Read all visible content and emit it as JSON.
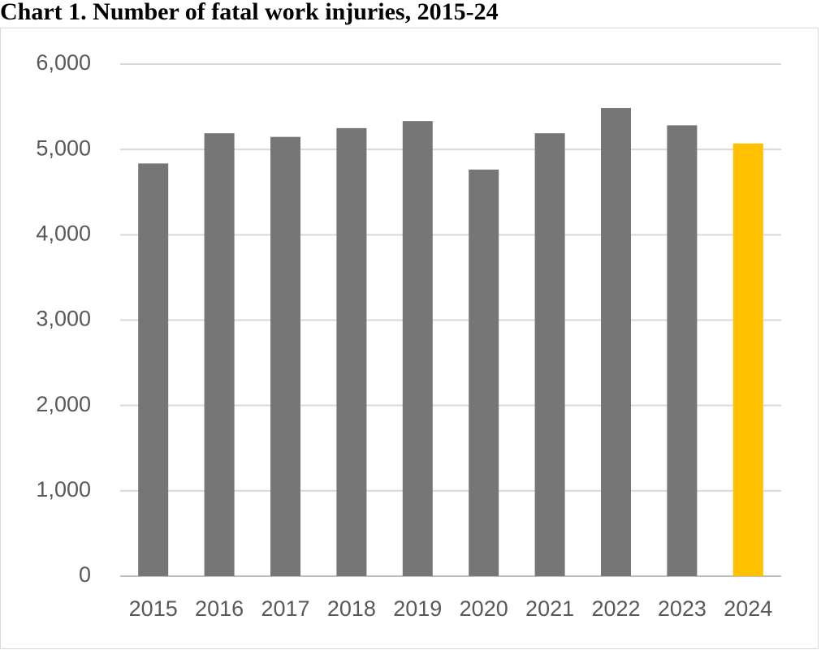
{
  "chart_data": {
    "type": "bar",
    "title": "Chart 1. Number of fatal work injuries, 2015-24",
    "categories": [
      "2015",
      "2016",
      "2017",
      "2018",
      "2019",
      "2020",
      "2021",
      "2022",
      "2023",
      "2024"
    ],
    "values": [
      4836,
      5190,
      5147,
      5250,
      5333,
      4764,
      5190,
      5486,
      5283,
      5070
    ],
    "colors": [
      "#767676",
      "#767676",
      "#767676",
      "#767676",
      "#767676",
      "#767676",
      "#767676",
      "#767676",
      "#767676",
      "#ffc000"
    ],
    "ylim": [
      0,
      6000
    ],
    "yticks": [
      0,
      {
        "value": 1000,
        "label": "1,000"
      },
      {
        "value": 2000,
        "label": "2,000"
      },
      {
        "value": 3000,
        "label": "3,000"
      },
      {
        "value": 4000,
        "label": "4,000"
      },
      {
        "value": 5000,
        "label": "5,000"
      },
      {
        "value": 6000,
        "label": "6,000"
      }
    ],
    "grid": true
  }
}
